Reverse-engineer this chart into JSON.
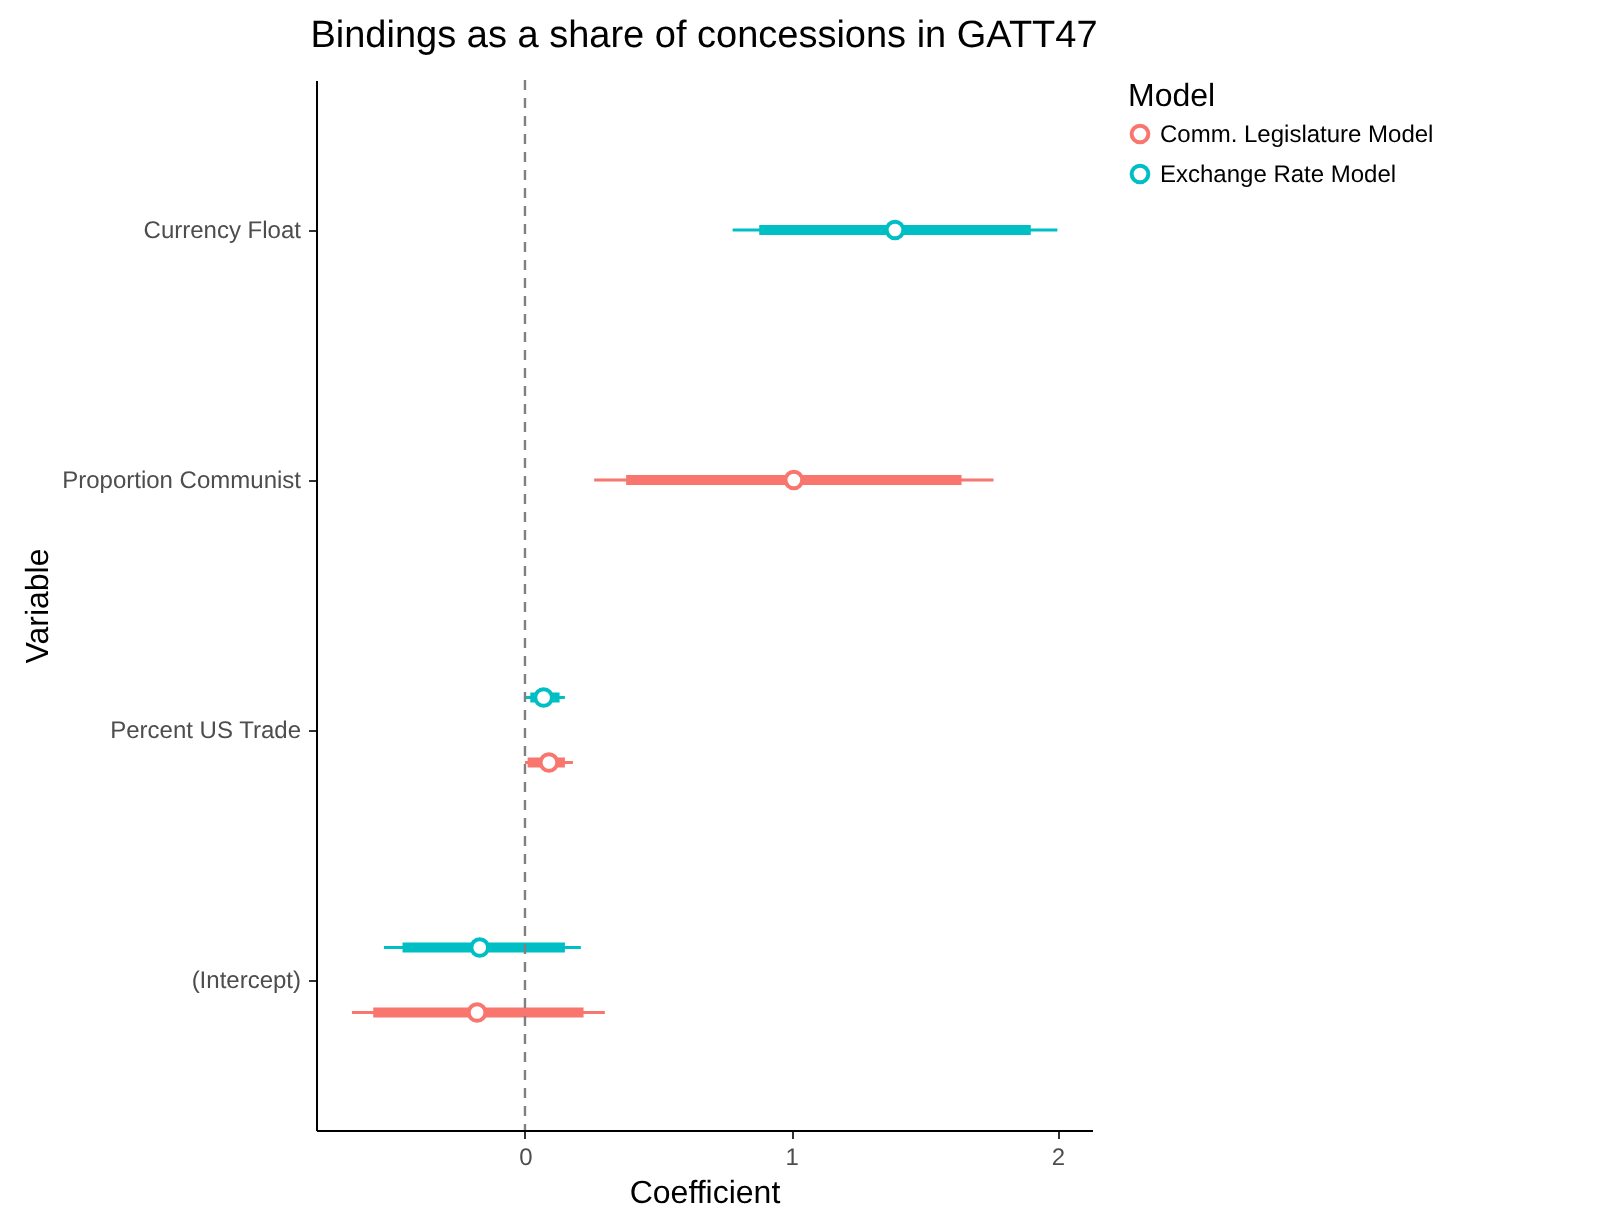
{
  "chart_data": {
    "type": "box",
    "orientation": "horizontal",
    "title": "Bindings as a share of concessions in GATT47",
    "xlabel": "Coefficient",
    "ylabel": "Variable",
    "legend_title": "Model",
    "legend": "right",
    "grid": false,
    "categories": [
      "Currency Float",
      "Proportion Communist",
      "Percent US Trade",
      "(Intercept)"
    ],
    "xlim": [
      -0.785,
      2.13
    ],
    "xticks": [
      0,
      1,
      2
    ],
    "ref_lines": [
      {
        "axis": "x",
        "value": 0,
        "color": "#808080",
        "line_style": "dashed"
      }
    ],
    "series": [
      {
        "name": "Comm. Legislature Model",
        "color": "#f8766d",
        "boxes": [
          null,
          {
            "low": 0.26,
            "q1": 0.38,
            "median": 1.01,
            "q3": 1.64,
            "high": 1.76
          },
          {
            "low": 0.0,
            "q1": 0.01,
            "median": 0.09,
            "q3": 0.15,
            "high": 0.18
          },
          {
            "low": -0.65,
            "q1": -0.57,
            "median": -0.18,
            "q3": 0.22,
            "high": 0.3
          }
        ]
      },
      {
        "name": "Exchange Rate Model",
        "color": "#00bfc4",
        "boxes": [
          {
            "low": 0.78,
            "q1": 0.88,
            "median": 1.39,
            "q3": 1.9,
            "high": 2.0
          },
          null,
          {
            "low": 0.0,
            "q1": 0.02,
            "median": 0.07,
            "q3": 0.13,
            "high": 0.15
          },
          {
            "low": -0.53,
            "q1": -0.46,
            "median": -0.17,
            "q3": 0.15,
            "high": 0.21
          }
        ]
      }
    ]
  }
}
